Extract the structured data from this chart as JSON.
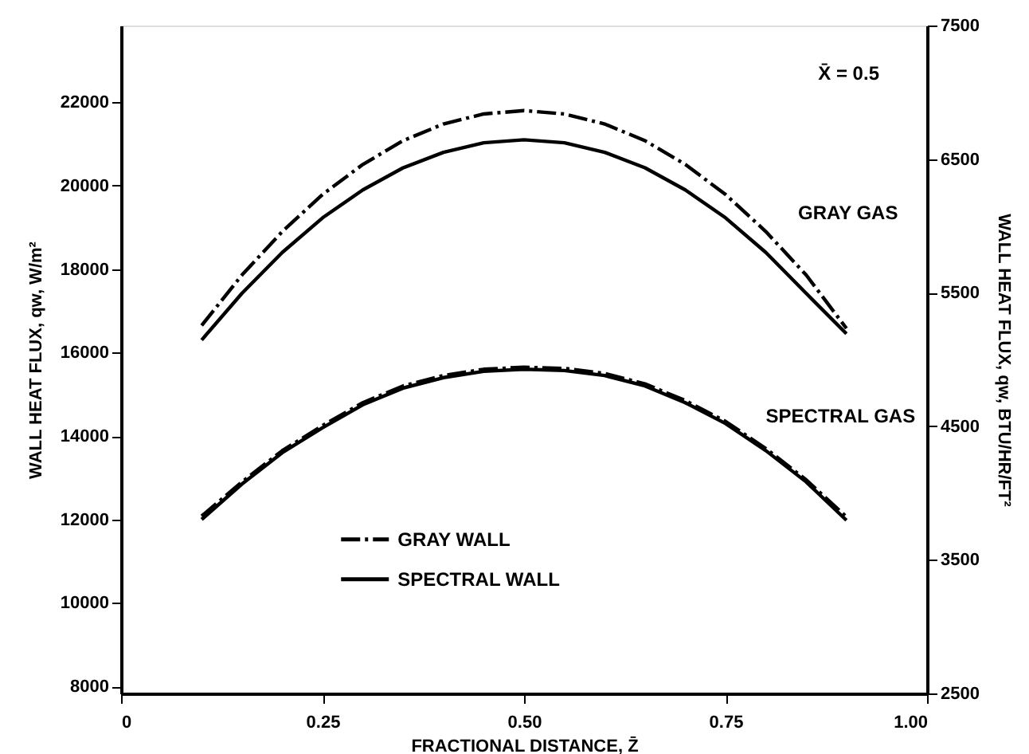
{
  "chart_data": {
    "type": "line",
    "xlabel": "FRACTIONAL DISTANCE, Z̄",
    "ylabel": "WALL HEAT FLUX, qw, W/m²",
    "y2label": "WALL HEAT FLUX, qw, BTU/HR/FT²",
    "x": [
      0.1,
      0.15,
      0.2,
      0.25,
      0.3,
      0.35,
      0.4,
      0.45,
      0.5,
      0.55,
      0.6,
      0.65,
      0.7,
      0.75,
      0.8,
      0.85,
      0.9
    ],
    "series": [
      {
        "name": "GRAY WALL",
        "color": "#000000",
        "line_style": "dashdot",
        "values": [
          16650,
          17860,
          18900,
          19790,
          20510,
          21080,
          21480,
          21720,
          21800,
          21720,
          21480,
          21080,
          20510,
          19790,
          18900,
          17860,
          16580
        ]
      },
      {
        "name": "SPECTRAL WALL",
        "color": "#000000",
        "line_style": "solid",
        "values": [
          16300,
          17420,
          18400,
          19230,
          19900,
          20430,
          20800,
          21030,
          21100,
          21030,
          20800,
          20430,
          19900,
          19230,
          18400,
          17420,
          16450
        ]
      },
      {
        "color": "#000000",
        "line_style": "dashdot",
        "values": [
          12080,
          12900,
          13650,
          14250,
          14800,
          15200,
          15450,
          15600,
          15650,
          15620,
          15500,
          15250,
          14850,
          14350,
          13700,
          12950,
          12060
        ]
      },
      {
        "color": "#000000",
        "line_style": "solid",
        "values": [
          12000,
          12850,
          13600,
          14200,
          14750,
          15150,
          15400,
          15550,
          15600,
          15570,
          15450,
          15200,
          14800,
          14300,
          13650,
          12900,
          11980
        ]
      }
    ],
    "xlim": [
      0,
      1
    ],
    "xticks": [
      0,
      {
        "value": 0.25,
        "label": "0.25"
      },
      {
        "value": 0.5,
        "label": "0.50"
      },
      {
        "value": 0.75,
        "label": "0.75"
      },
      {
        "value": 1,
        "label": "1.00"
      }
    ],
    "ylim": [
      7830,
      23840
    ],
    "yticks": [
      8000,
      10000,
      12000,
      14000,
      16000,
      18000,
      20000,
      22000
    ],
    "y2lim": [
      2500,
      7500
    ],
    "y2ticks": [
      2500,
      3500,
      4500,
      5500,
      6500,
      7500
    ],
    "annotations": [
      "X̄ = 0.5",
      "GRAY GAS",
      "SPECTRAL GAS"
    ],
    "grid": false,
    "legend": "bottom",
    "marker": "none"
  }
}
